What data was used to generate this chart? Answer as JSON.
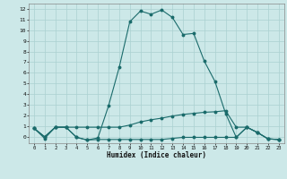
{
  "xlabel": "Humidex (Indice chaleur)",
  "bg_color": "#cce8e8",
  "grid_color": "#aad0d0",
  "line_color": "#1a6b6b",
  "xlim": [
    -0.5,
    23.5
  ],
  "ylim": [
    -0.6,
    12.5
  ],
  "xticks": [
    0,
    1,
    2,
    3,
    4,
    5,
    6,
    7,
    8,
    9,
    10,
    11,
    12,
    13,
    14,
    15,
    16,
    17,
    18,
    19,
    20,
    21,
    22,
    23
  ],
  "yticks": [
    0,
    1,
    2,
    3,
    4,
    5,
    6,
    7,
    8,
    9,
    10,
    11,
    12
  ],
  "line1_x": [
    0,
    1,
    2,
    3,
    4,
    5,
    6,
    7,
    8,
    9,
    10,
    11,
    12,
    13,
    14,
    15,
    16,
    17,
    18,
    19,
    20,
    21,
    22,
    23
  ],
  "line1_y": [
    0.8,
    -0.15,
    0.9,
    0.9,
    -0.05,
    -0.3,
    -0.1,
    2.9,
    6.5,
    10.8,
    11.8,
    11.5,
    11.9,
    11.2,
    9.6,
    9.7,
    7.1,
    5.2,
    2.2,
    -0.05,
    0.9,
    0.4,
    -0.2,
    -0.25
  ],
  "line2_x": [
    0,
    1,
    2,
    3,
    4,
    5,
    6,
    7,
    8,
    9,
    10,
    11,
    12,
    13,
    14,
    15,
    16,
    17,
    18,
    19,
    20,
    21,
    22,
    23
  ],
  "line2_y": [
    0.8,
    0,
    0.9,
    0.9,
    0.9,
    0.9,
    0.9,
    0.9,
    0.9,
    1.1,
    1.4,
    1.6,
    1.75,
    1.95,
    2.1,
    2.2,
    2.3,
    2.35,
    2.45,
    0.9,
    0.9,
    0.4,
    -0.2,
    -0.25
  ],
  "line3_x": [
    0,
    1,
    2,
    3,
    4,
    5,
    6,
    7,
    8,
    9,
    10,
    11,
    12,
    13,
    14,
    15,
    16,
    17,
    18,
    19,
    20,
    21,
    22,
    23
  ],
  "line3_y": [
    0.8,
    0,
    0.9,
    0.9,
    -0.05,
    -0.3,
    -0.25,
    -0.25,
    -0.25,
    -0.25,
    -0.25,
    -0.25,
    -0.25,
    -0.15,
    -0.05,
    -0.05,
    -0.05,
    -0.05,
    -0.05,
    -0.05,
    0.9,
    0.4,
    -0.2,
    -0.25
  ]
}
